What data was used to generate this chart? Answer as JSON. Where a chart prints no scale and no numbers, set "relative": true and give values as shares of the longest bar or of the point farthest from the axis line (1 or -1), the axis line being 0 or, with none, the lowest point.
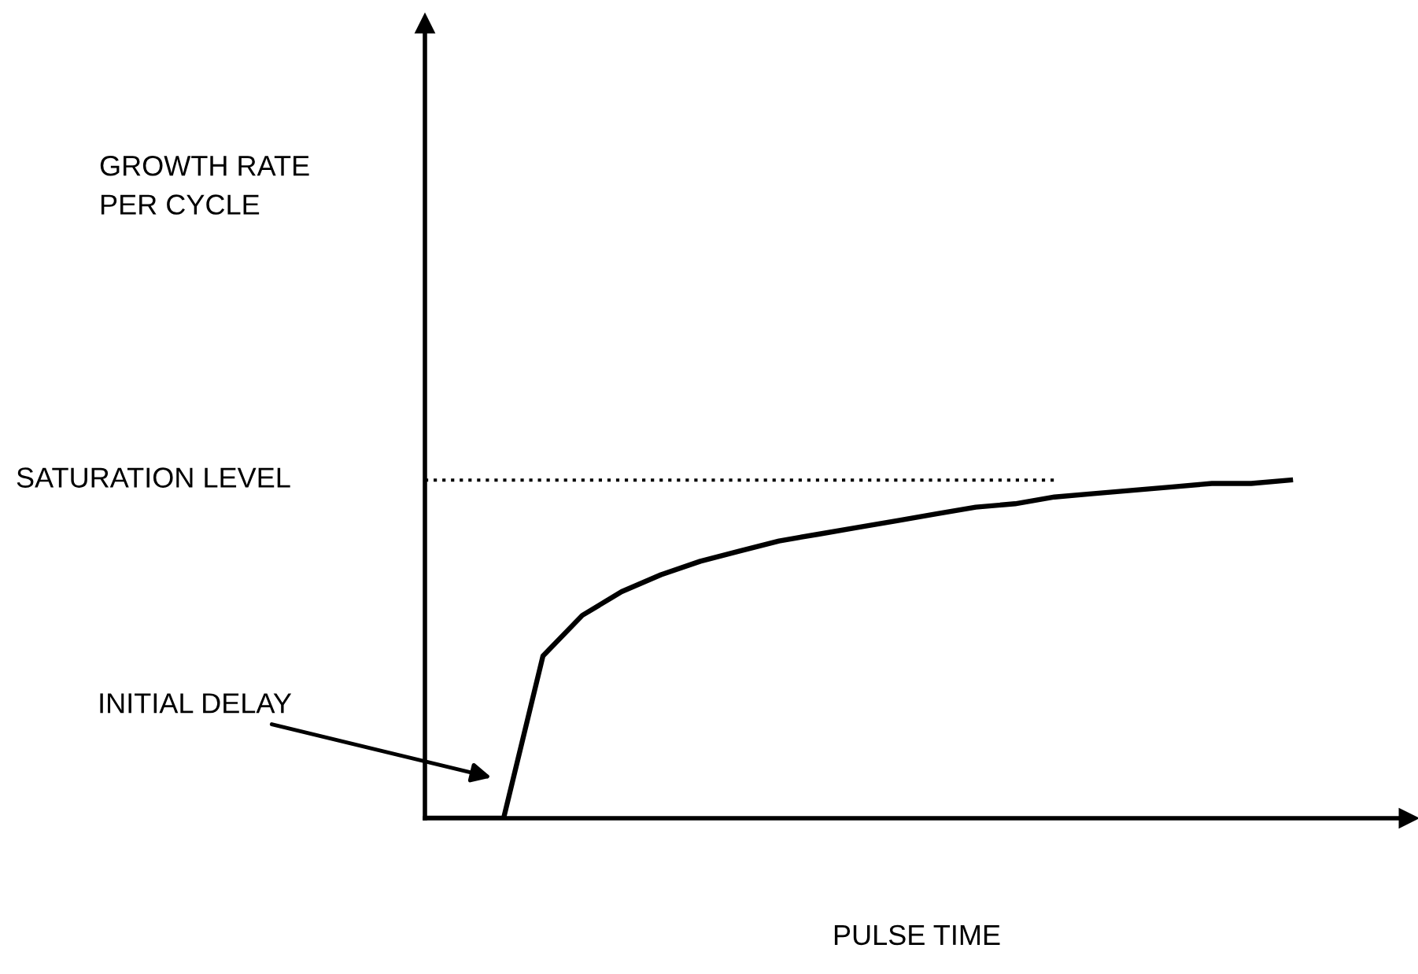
{
  "chart_data": {
    "type": "line",
    "relative": true,
    "xlabel": "PULSE TIME",
    "categories": [
      null,
      null,
      null,
      null,
      null,
      null,
      null,
      null,
      null,
      null,
      null,
      null,
      null,
      null,
      null,
      null,
      null,
      null,
      null,
      null,
      null,
      null,
      null
    ],
    "series": [
      {
        "color": "#000000",
        "values": [
          0,
          0,
          0,
          0.48,
          0.6,
          0.67,
          0.72,
          0.76,
          0.79,
          0.82,
          0.84,
          0.86,
          0.88,
          0.9,
          0.92,
          0.93,
          0.95,
          0.96,
          0.97,
          0.98,
          0.99,
          0.99,
          1
        ]
      }
    ],
    "ref_lines": [
      {
        "axis": "y",
        "value": 1,
        "label": "SATURATION LEVEL",
        "color": "#000000",
        "line_style": "dotted"
      }
    ],
    "annotations": [
      "GROWTH RATE\nPER CYCLE",
      "INITIAL DELAY"
    ],
    "marker": "none",
    "line_style": "solid"
  }
}
